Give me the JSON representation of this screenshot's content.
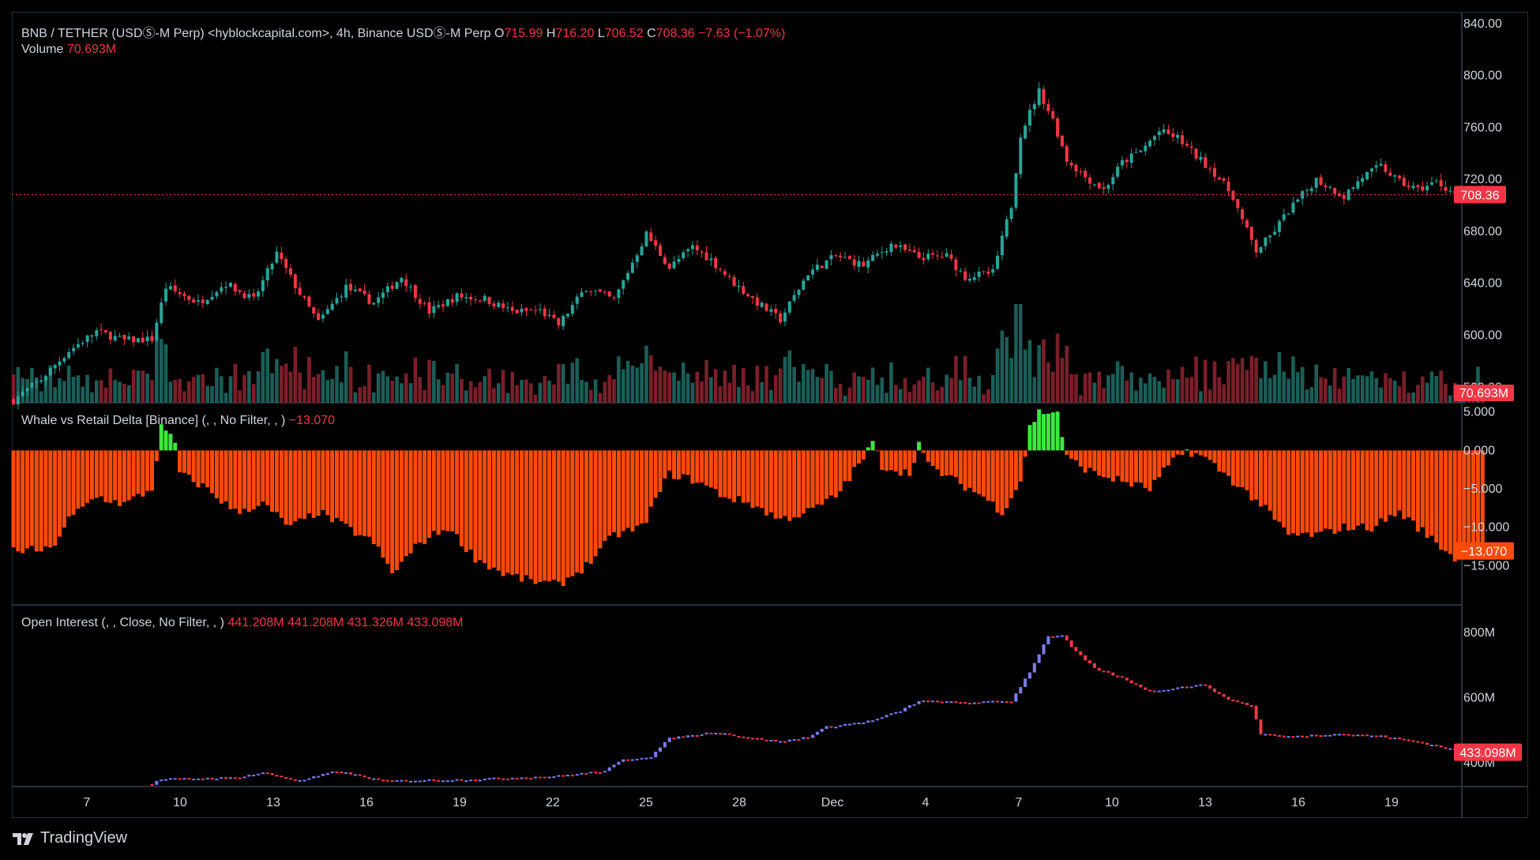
{
  "header": {
    "symbol": "BNB / TETHER (USDⓈ-M Perp) <hyblockcapital.com>, 4h, Binance USDⓈ-M Perp",
    "o_label": "O",
    "o_value": "715.99",
    "h_label": "H",
    "h_value": "716.20",
    "l_label": "L",
    "l_value": "706.52",
    "c_label": "C",
    "c_value": "708.36",
    "change": "−7.63 (−1.07%)"
  },
  "volume_legend": {
    "label": "Volume",
    "value": "70.693M"
  },
  "whale_legend": {
    "label": "Whale vs Retail Delta [Binance] (, , No Filter, , )",
    "value": "−13.070"
  },
  "oi_legend": {
    "label": "Open Interest (, , Close, No Filter, , )",
    "values": [
      "441.208M",
      "441.208M",
      "431.326M",
      "433.098M"
    ]
  },
  "footer": {
    "brand": "TradingView"
  },
  "colors": {
    "up": "#26a69a",
    "down": "#f23645",
    "whale_neg": "#ff4a0a",
    "whale_pos": "#3de83d",
    "oi_up": "#7b7bf0",
    "oi_down": "#f23645",
    "grid": "#1e222d"
  },
  "chart_data": [
    {
      "type": "candlestick",
      "title": "BNB / TETHER (USDⓈ-M Perp), 4h",
      "x_tick_labels": [
        "7",
        "10",
        "13",
        "16",
        "19",
        "22",
        "25",
        "28",
        "Dec",
        "4",
        "7",
        "10",
        "13",
        "16",
        "19"
      ],
      "y_tick_labels": [
        "840.00",
        "800.00",
        "760.00",
        "720.00",
        "680.00",
        "640.00",
        "600.00",
        "560.00"
      ],
      "ylim": [
        548,
        846
      ],
      "last_price_label": "708.36",
      "last_price": 708.36,
      "close_path": [
        {
          "t": 0,
          "c": 550
        },
        {
          "t": 6,
          "c": 566
        },
        {
          "t": 12,
          "c": 588
        },
        {
          "t": 18,
          "c": 603
        },
        {
          "t": 24,
          "c": 596
        },
        {
          "t": 30,
          "c": 597
        },
        {
          "t": 33,
          "c": 637
        },
        {
          "t": 40,
          "c": 625
        },
        {
          "t": 46,
          "c": 640
        },
        {
          "t": 52,
          "c": 627
        },
        {
          "t": 57,
          "c": 663
        },
        {
          "t": 62,
          "c": 632
        },
        {
          "t": 66,
          "c": 610
        },
        {
          "t": 72,
          "c": 637
        },
        {
          "t": 78,
          "c": 625
        },
        {
          "t": 84,
          "c": 645
        },
        {
          "t": 90,
          "c": 618
        },
        {
          "t": 96,
          "c": 630
        },
        {
          "t": 102,
          "c": 628
        },
        {
          "t": 108,
          "c": 618
        },
        {
          "t": 114,
          "c": 619
        },
        {
          "t": 118,
          "c": 608
        },
        {
          "t": 124,
          "c": 637
        },
        {
          "t": 130,
          "c": 627
        },
        {
          "t": 137,
          "c": 678
        },
        {
          "t": 142,
          "c": 652
        },
        {
          "t": 147,
          "c": 668
        },
        {
          "t": 151,
          "c": 658
        },
        {
          "t": 156,
          "c": 640
        },
        {
          "t": 161,
          "c": 625
        },
        {
          "t": 166,
          "c": 612
        },
        {
          "t": 172,
          "c": 648
        },
        {
          "t": 178,
          "c": 661
        },
        {
          "t": 184,
          "c": 654
        },
        {
          "t": 190,
          "c": 670
        },
        {
          "t": 196,
          "c": 660
        },
        {
          "t": 202,
          "c": 661
        },
        {
          "t": 206,
          "c": 645
        },
        {
          "t": 212,
          "c": 648
        },
        {
          "t": 216,
          "c": 700
        },
        {
          "t": 218,
          "c": 755
        },
        {
          "t": 222,
          "c": 788
        },
        {
          "t": 225,
          "c": 766
        },
        {
          "t": 228,
          "c": 735
        },
        {
          "t": 232,
          "c": 722
        },
        {
          "t": 236,
          "c": 712
        },
        {
          "t": 240,
          "c": 733
        },
        {
          "t": 244,
          "c": 742
        },
        {
          "t": 248,
          "c": 757
        },
        {
          "t": 252,
          "c": 752
        },
        {
          "t": 256,
          "c": 738
        },
        {
          "t": 260,
          "c": 725
        },
        {
          "t": 264,
          "c": 707
        },
        {
          "t": 266,
          "c": 688
        },
        {
          "t": 269,
          "c": 665
        },
        {
          "t": 272,
          "c": 676
        },
        {
          "t": 276,
          "c": 696
        },
        {
          "t": 282,
          "c": 720
        },
        {
          "t": 288,
          "c": 707
        },
        {
          "t": 292,
          "c": 722
        },
        {
          "t": 296,
          "c": 730
        },
        {
          "t": 300,
          "c": 718
        },
        {
          "t": 304,
          "c": 712
        },
        {
          "t": 308,
          "c": 718
        },
        {
          "t": 312,
          "c": 709
        }
      ],
      "series": [
        {
          "name": "Volume",
          "last_value": "70.693M"
        }
      ]
    },
    {
      "type": "bar",
      "title": "Whale vs Retail Delta [Binance]",
      "y_tick_labels": [
        "5.000",
        "0.000",
        "−5.000",
        "−10.000",
        "−15.000"
      ],
      "ylim": [
        -20,
        6
      ],
      "last_value_label": "−13.070",
      "values_path": [
        {
          "t": 0,
          "v": -13
        },
        {
          "t": 8,
          "v": -13
        },
        {
          "t": 12,
          "v": -9
        },
        {
          "t": 18,
          "v": -6
        },
        {
          "t": 24,
          "v": -7
        },
        {
          "t": 30,
          "v": -5
        },
        {
          "t": 32,
          "v": 3
        },
        {
          "t": 35,
          "v": 1
        },
        {
          "t": 36,
          "v": -3
        },
        {
          "t": 42,
          "v": -5
        },
        {
          "t": 48,
          "v": -8
        },
        {
          "t": 54,
          "v": -7
        },
        {
          "t": 60,
          "v": -10
        },
        {
          "t": 66,
          "v": -8
        },
        {
          "t": 72,
          "v": -10
        },
        {
          "t": 78,
          "v": -12
        },
        {
          "t": 82,
          "v": -16
        },
        {
          "t": 88,
          "v": -12
        },
        {
          "t": 94,
          "v": -10
        },
        {
          "t": 100,
          "v": -14
        },
        {
          "t": 106,
          "v": -16
        },
        {
          "t": 112,
          "v": -17
        },
        {
          "t": 118,
          "v": -17.5
        },
        {
          "t": 124,
          "v": -15
        },
        {
          "t": 130,
          "v": -11
        },
        {
          "t": 136,
          "v": -10
        },
        {
          "t": 142,
          "v": -3
        },
        {
          "t": 148,
          "v": -4
        },
        {
          "t": 154,
          "v": -6
        },
        {
          "t": 160,
          "v": -7
        },
        {
          "t": 166,
          "v": -9
        },
        {
          "t": 172,
          "v": -8
        },
        {
          "t": 178,
          "v": -6
        },
        {
          "t": 184,
          "v": -1
        },
        {
          "t": 186,
          "v": 1
        },
        {
          "t": 188,
          "v": -2
        },
        {
          "t": 194,
          "v": -3
        },
        {
          "t": 196,
          "v": 1
        },
        {
          "t": 198,
          "v": -2
        },
        {
          "t": 204,
          "v": -4
        },
        {
          "t": 210,
          "v": -6
        },
        {
          "t": 214,
          "v": -8
        },
        {
          "t": 218,
          "v": -4
        },
        {
          "t": 220,
          "v": 3
        },
        {
          "t": 222,
          "v": 5
        },
        {
          "t": 226,
          "v": 5
        },
        {
          "t": 228,
          "v": -1
        },
        {
          "t": 234,
          "v": -3
        },
        {
          "t": 240,
          "v": -4
        },
        {
          "t": 246,
          "v": -5
        },
        {
          "t": 250,
          "v": -2
        },
        {
          "t": 254,
          "v": 0
        },
        {
          "t": 258,
          "v": -1
        },
        {
          "t": 264,
          "v": -4
        },
        {
          "t": 270,
          "v": -7
        },
        {
          "t": 276,
          "v": -11
        },
        {
          "t": 282,
          "v": -11
        },
        {
          "t": 288,
          "v": -10
        },
        {
          "t": 294,
          "v": -10
        },
        {
          "t": 300,
          "v": -8
        },
        {
          "t": 306,
          "v": -11
        },
        {
          "t": 312,
          "v": -14
        },
        {
          "t": 318,
          "v": -13
        }
      ]
    },
    {
      "type": "candlestick",
      "title": "Open Interest",
      "y_tick_labels": [
        "800M",
        "600M",
        "400M"
      ],
      "ylim": [
        330,
        880
      ],
      "last_value_label": "433.098M",
      "close_path": [
        {
          "t": 30,
          "c": 335
        },
        {
          "t": 32,
          "c": 350
        },
        {
          "t": 48,
          "c": 355
        },
        {
          "t": 54,
          "c": 370
        },
        {
          "t": 62,
          "c": 345
        },
        {
          "t": 70,
          "c": 375
        },
        {
          "t": 80,
          "c": 345
        },
        {
          "t": 100,
          "c": 350
        },
        {
          "t": 118,
          "c": 360
        },
        {
          "t": 128,
          "c": 375
        },
        {
          "t": 132,
          "c": 410
        },
        {
          "t": 138,
          "c": 420
        },
        {
          "t": 142,
          "c": 475
        },
        {
          "t": 152,
          "c": 495
        },
        {
          "t": 158,
          "c": 480
        },
        {
          "t": 166,
          "c": 465
        },
        {
          "t": 172,
          "c": 480
        },
        {
          "t": 176,
          "c": 510
        },
        {
          "t": 186,
          "c": 530
        },
        {
          "t": 192,
          "c": 560
        },
        {
          "t": 196,
          "c": 590
        },
        {
          "t": 206,
          "c": 585
        },
        {
          "t": 216,
          "c": 590
        },
        {
          "t": 220,
          "c": 680
        },
        {
          "t": 224,
          "c": 790
        },
        {
          "t": 227,
          "c": 790
        },
        {
          "t": 230,
          "c": 740
        },
        {
          "t": 234,
          "c": 690
        },
        {
          "t": 240,
          "c": 660
        },
        {
          "t": 246,
          "c": 620
        },
        {
          "t": 254,
          "c": 635
        },
        {
          "t": 258,
          "c": 640
        },
        {
          "t": 262,
          "c": 600
        },
        {
          "t": 268,
          "c": 575
        },
        {
          "t": 270,
          "c": 490
        },
        {
          "t": 276,
          "c": 480
        },
        {
          "t": 286,
          "c": 490
        },
        {
          "t": 296,
          "c": 482
        },
        {
          "t": 304,
          "c": 465
        },
        {
          "t": 312,
          "c": 440
        },
        {
          "t": 318,
          "c": 433
        }
      ]
    }
  ]
}
